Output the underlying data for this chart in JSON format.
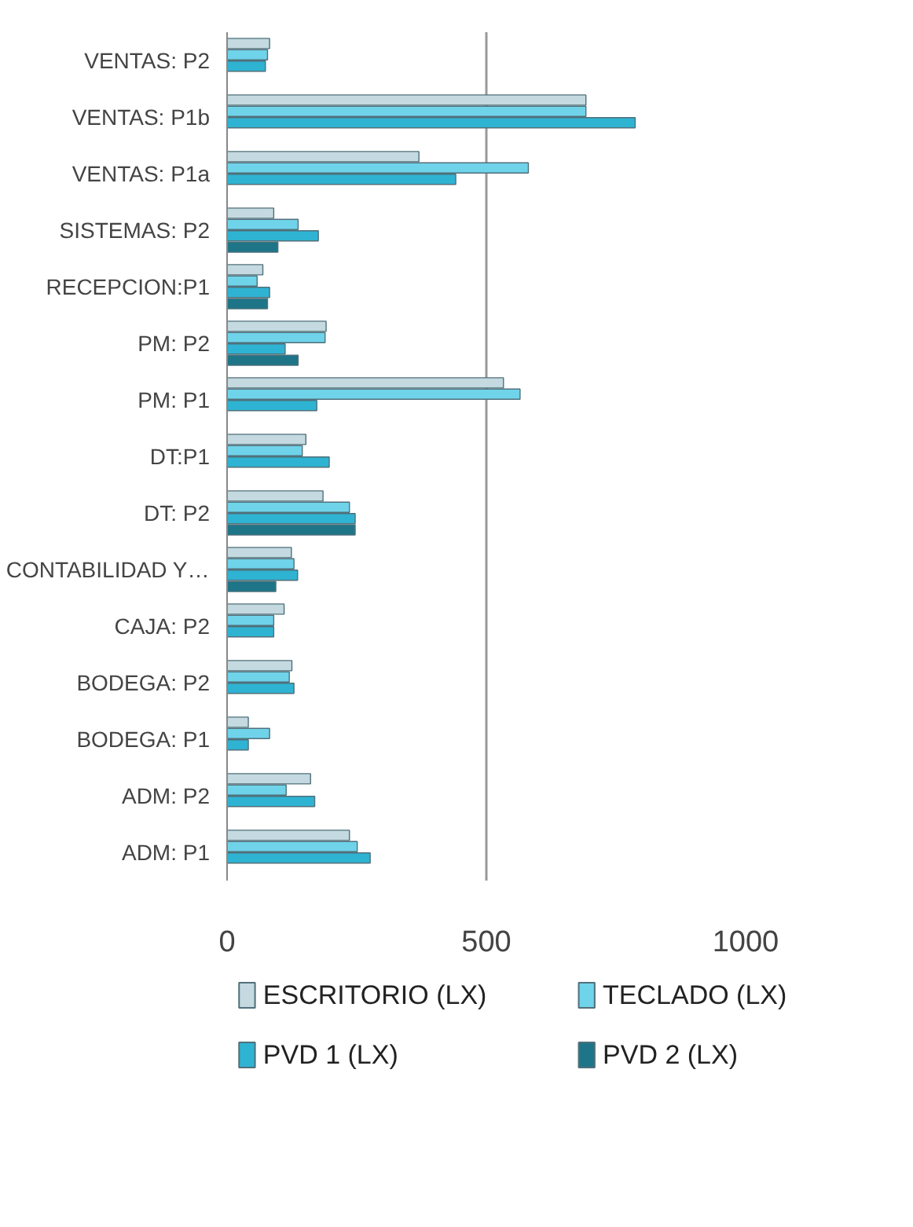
{
  "chart_data": {
    "type": "bar",
    "orientation": "horizontal",
    "categories": [
      "VENTAS: P2",
      "VENTAS: P1b",
      "VENTAS: P1a",
      "SISTEMAS: P2",
      "RECEPCION:P1",
      "PM: P2",
      "PM: P1",
      "DT:P1",
      "DT: P2",
      "CONTABILIDAD Y…",
      "CAJA: P2",
      "BODEGA: P2",
      "BODEGA: P1",
      "ADM: P2",
      "ADM: P1"
    ],
    "series": [
      {
        "name": "ESCRITORIO (LX)",
        "color": "#c4d9e0",
        "values": [
          82,
          692,
          370,
          90,
          69,
          191,
          533,
          152,
          185,
          124,
          110,
          125,
          41,
          161,
          236
        ]
      },
      {
        "name": "TECLADO (LX)",
        "color": "#6fd3ea",
        "values": [
          78,
          692,
          581,
          137,
          58,
          189,
          565,
          145,
          236,
          129,
          90,
          120,
          82,
          114,
          251
        ]
      },
      {
        "name": "PVD 1 (LX)",
        "color": "#2fb3d2",
        "values": [
          74,
          787,
          441,
          176,
          82,
          112,
          173,
          197,
          247,
          136,
          90,
          129,
          41,
          169,
          276
        ]
      },
      {
        "name": "PVD 2 (LX)",
        "color": "#1f7588",
        "values": [
          null,
          null,
          null,
          98,
          78,
          137,
          null,
          null,
          247,
          94,
          null,
          null,
          null,
          null,
          null
        ]
      }
    ],
    "xlim": [
      0,
      1000
    ],
    "xticks": [
      0,
      500,
      1000
    ],
    "grid": "x",
    "legend": "bottom"
  }
}
